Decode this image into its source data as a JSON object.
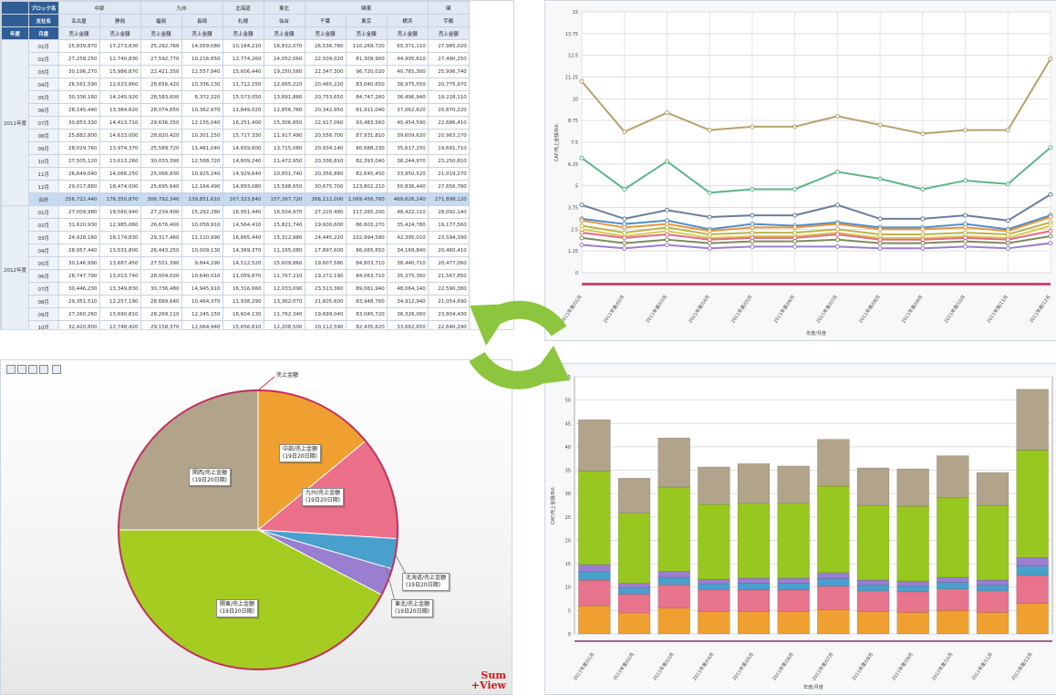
{
  "table": {
    "header_row1": [
      "ブロック名",
      "中部",
      "",
      "九州",
      "",
      "北海道",
      "東北",
      "関東",
      "",
      "",
      "",
      "関"
    ],
    "header_row2": [
      "支社名",
      "名古屋",
      "静岡",
      "福岡",
      "長崎",
      "札幌",
      "仙台",
      "千葉",
      "東京",
      "横浜",
      "宇都"
    ],
    "header_row3": [
      "年度",
      "月度",
      "売上金額"
    ],
    "years": [
      "2011年度",
      "2012年度"
    ],
    "months": [
      "01月",
      "02月",
      "03月",
      "04月",
      "05月",
      "06月",
      "07月",
      "08月",
      "09月",
      "10月",
      "11月",
      "12月"
    ],
    "total_label": "合計",
    "rows_2011": [
      [
        "25,839,870",
        "17,273,830",
        "25,292,760",
        "14,059,080",
        "10,164,210",
        "16,832,070",
        "26,536,780",
        "110,269,720",
        "65,371,110",
        "27,985,020"
      ],
      [
        "27,258,250",
        "12,740,830",
        "27,592,770",
        "10,216,650",
        "12,774,260",
        "14,052,060",
        "22,509,020",
        "81,309,900",
        "44,995,610",
        "27,490,250"
      ],
      [
        "30,196,270",
        "15,986,870",
        "22,421,350",
        "12,557,940",
        "15,606,440",
        "19,250,560",
        "22,347,300",
        "96,720,020",
        "40,765,300",
        "25,996,740"
      ],
      [
        "26,561,590",
        "12,633,860",
        "28,656,420",
        "10,336,130",
        "11,712,250",
        "12,665,220",
        "20,465,220",
        "83,040,650",
        "38,975,550",
        "20,775,970"
      ],
      [
        "30,336,160",
        "14,245,920",
        "28,583,600",
        "8,372,220",
        "15,573,050",
        "13,891,880",
        "20,753,650",
        "84,747,260",
        "36,496,940",
        "19,228,110"
      ],
      [
        "28,145,440",
        "13,384,620",
        "28,074,850",
        "10,362,970",
        "11,849,020",
        "12,856,760",
        "20,342,950",
        "81,911,040",
        "37,062,620",
        "20,670,220"
      ],
      [
        "30,853,330",
        "14,413,710",
        "29,636,350",
        "12,155,040",
        "16,251,400",
        "15,306,850",
        "22,917,060",
        "93,483,560",
        "45,454,590",
        "22,686,410"
      ],
      [
        "25,882,800",
        "14,633,000",
        "28,820,420",
        "10,301,150",
        "15,717,330",
        "11,917,490",
        "20,556,700",
        "87,931,810",
        "39,609,620",
        "20,963,170"
      ],
      [
        "28,029,760",
        "13,974,370",
        "25,589,720",
        "11,461,040",
        "14,659,600",
        "13,715,080",
        "20,934,140",
        "80,688,230",
        "35,617,250",
        "19,691,710"
      ],
      [
        "27,505,120",
        "13,613,260",
        "30,033,390",
        "12,568,720",
        "14,609,240",
        "11,472,950",
        "20,336,810",
        "82,393,040",
        "38,244,970",
        "23,250,810"
      ],
      [
        "26,649,040",
        "14,066,250",
        "25,066,830",
        "10,925,240",
        "14,929,640",
        "10,831,740",
        "20,356,880",
        "82,645,450",
        "33,950,520",
        "21,019,270"
      ],
      [
        "29,017,880",
        "18,474,000",
        "25,695,640",
        "12,164,490",
        "14,893,080",
        "15,598,650",
        "30,675,700",
        "123,802,210",
        "50,836,440",
        "27,656,780"
      ]
    ],
    "total_2011": [
      "256,722,440",
      "176,350,870",
      "306,792,340",
      "139,851,610",
      "167,323,840",
      "157,267,720",
      "266,112,000",
      "1,069,456,760",
      "469,626,240",
      "271,898,120"
    ],
    "rows_2012": [
      [
        "27,009,980",
        "19,560,940",
        "27,234,400",
        "15,292,280",
        "16,951,440",
        "16,504,970",
        "27,220,480",
        "117,265,200",
        "48,422,110",
        "28,092,140"
      ],
      [
        "31,620,930",
        "12,985,060",
        "26,676,400",
        "10,058,910",
        "14,564,410",
        "15,821,740",
        "19,600,600",
        "86,603,270",
        "35,424,780",
        "19,177,560"
      ],
      [
        "24,928,160",
        "18,174,830",
        "29,317,460",
        "11,110,990",
        "16,865,440",
        "15,312,980",
        "24,445,220",
        "102,994,580",
        "42,395,010",
        "23,594,390"
      ],
      [
        "28,957,440",
        "13,531,800",
        "26,443,250",
        "10,009,130",
        "14,369,370",
        "11,165,080",
        "17,897,600",
        "86,065,650",
        "34,169,840",
        "20,460,410"
      ],
      [
        "30,146,990",
        "13,687,450",
        "27,551,390",
        "9,844,290",
        "14,512,520",
        "15,609,860",
        "19,607,580",
        "84,803,710",
        "38,440,710",
        "20,477,060"
      ],
      [
        "28,747,790",
        "13,013,740",
        "28,004,020",
        "10,640,010",
        "11,059,870",
        "11,767,210",
        "19,272,190",
        "84,063,710",
        "35,375,360",
        "21,567,850"
      ],
      [
        "30,446,230",
        "13,349,830",
        "30,736,480",
        "14,945,910",
        "16,316,660",
        "12,033,090",
        "23,513,360",
        "89,061,940",
        "48,064,140",
        "22,590,380"
      ],
      [
        "29,351,510",
        "12,257,190",
        "28,689,640",
        "10,464,370",
        "11,938,290",
        "13,362,070",
        "21,605,600",
        "83,948,760",
        "34,912,940",
        "21,054,690"
      ],
      [
        "27,260,260",
        "13,690,810",
        "28,269,110",
        "12,245,150",
        "16,604,130",
        "11,762,340",
        "19,699,040",
        "83,045,720",
        "36,326,060",
        "23,804,430"
      ],
      [
        "32,420,800",
        "12,748,420",
        "29,158,370",
        "12,064,940",
        "15,656,610",
        "12,208,500",
        "20,112,590",
        "82,435,620",
        "33,662,650",
        "22,640,290"
      ]
    ]
  },
  "line_chart": {
    "y_ticks": [
      "15",
      "13.75",
      "12.5",
      "11.25",
      "10",
      "8.75",
      "7.5",
      "6.25",
      "5",
      "3.75",
      "2.5",
      "1.25",
      "0"
    ],
    "y_axis_label": "CAF/売上金額/Bill.",
    "x_axis_label": "年度/月度",
    "categories": [
      "2011年度/01月",
      "2011年度/02月",
      "2011年度/03月",
      "2011年度/04月",
      "2011年度/05月",
      "2011年度/06月",
      "2011年度/07月",
      "2011年度/08月",
      "2011年度/09月",
      "2011年度/10月",
      "2011年度/11月",
      "2011年度/12月"
    ]
  },
  "bar_chart": {
    "y_ticks": [
      "55",
      "50",
      "45",
      "40",
      "35",
      "30",
      "25",
      "20",
      "15",
      "10",
      "5",
      "0"
    ],
    "y_axis_label": "CAF/売上金額/Bill.",
    "x_axis_label": "年度/月度",
    "categories": [
      "2011年度/01月",
      "2011年度/02月",
      "2011年度/03月",
      "2011年度/04月",
      "2011年度/05月",
      "2011年度/06月",
      "2011年度/07月",
      "2011年度/08月",
      "2011年度/09月",
      "2011年度/10月",
      "2011年度/11月",
      "2011年度/12月"
    ]
  },
  "chart_data": [
    {
      "type": "line",
      "x": [
        "2011年度/01月",
        "2011年度/02月",
        "2011年度/03月",
        "2011年度/04月",
        "2011年度/05月",
        "2011年度/06月",
        "2011年度/07月",
        "2011年度/08月",
        "2011年度/09月",
        "2011年度/10月",
        "2011年度/11月",
        "2011年度/12月"
      ],
      "ylim": [
        0,
        15
      ],
      "series": [
        {
          "color": "#b5a26a",
          "values": [
            11.0,
            8.1,
            9.2,
            8.2,
            8.4,
            8.4,
            9.0,
            8.5,
            8.0,
            8.2,
            8.2,
            12.3
          ]
        },
        {
          "color": "#5fb58a",
          "values": [
            6.6,
            4.8,
            6.4,
            4.6,
            4.8,
            4.8,
            5.8,
            5.4,
            4.8,
            5.3,
            5.1,
            7.2
          ]
        },
        {
          "color": "#6a7d9a",
          "values": [
            3.9,
            3.1,
            3.6,
            3.2,
            3.3,
            3.3,
            3.9,
            3.1,
            3.1,
            3.3,
            3.0,
            4.5
          ]
        },
        {
          "color": "#4f8fc8",
          "values": [
            3.1,
            2.8,
            3.0,
            2.5,
            2.8,
            2.7,
            2.9,
            2.6,
            2.6,
            2.8,
            2.5,
            3.3
          ]
        },
        {
          "color": "#e8943a",
          "values": [
            3.0,
            2.6,
            2.8,
            2.4,
            2.6,
            2.6,
            2.8,
            2.5,
            2.5,
            2.6,
            2.4,
            3.2
          ]
        },
        {
          "color": "#b9b44a",
          "values": [
            2.7,
            2.3,
            2.6,
            2.2,
            2.3,
            2.3,
            2.5,
            2.2,
            2.2,
            2.3,
            2.2,
            2.9
          ]
        },
        {
          "color": "#d9c94f",
          "values": [
            2.5,
            2.1,
            2.4,
            2.0,
            2.1,
            2.1,
            2.3,
            2.0,
            2.0,
            2.1,
            2.0,
            2.7
          ]
        },
        {
          "color": "#e06a8a",
          "values": [
            2.3,
            2.0,
            2.2,
            1.9,
            2.0,
            2.0,
            2.2,
            1.9,
            1.9,
            2.0,
            1.9,
            2.4
          ]
        },
        {
          "color": "#7d8b5b",
          "values": [
            2.0,
            1.7,
            1.9,
            1.7,
            1.8,
            1.8,
            1.9,
            1.7,
            1.7,
            1.8,
            1.7,
            2.1
          ]
        },
        {
          "color": "#9a7fd1",
          "values": [
            1.6,
            1.4,
            1.6,
            1.4,
            1.5,
            1.5,
            1.5,
            1.4,
            1.4,
            1.5,
            1.4,
            1.7
          ]
        }
      ]
    },
    {
      "type": "bar",
      "x": [
        "2011年度/01月",
        "2011年度/02月",
        "2011年度/03月",
        "2011年度/04月",
        "2011年度/05月",
        "2011年度/06月",
        "2011年度/07月",
        "2011年度/08月",
        "2011年度/09月",
        "2011年度/10月",
        "2011年度/11月",
        "2011年度/12月"
      ],
      "ylim": [
        0,
        55
      ],
      "stacked": true,
      "series": [
        {
          "color": "#f0a030",
          "values": [
            6,
            4.5,
            5.5,
            4.8,
            4.8,
            4.8,
            5.2,
            4.8,
            4.6,
            5,
            4.6,
            6.5
          ]
        },
        {
          "color": "#e8738c",
          "values": [
            5.5,
            4,
            5,
            4.6,
            4.6,
            4.6,
            5,
            4.4,
            4.4,
            4.6,
            4.6,
            6
          ]
        },
        {
          "color": "#4aa0cc",
          "values": [
            1.8,
            1.3,
            1.6,
            1.3,
            1.4,
            1.4,
            1.6,
            1.3,
            1.3,
            1.4,
            1.3,
            2
          ]
        },
        {
          "color": "#9a7fd1",
          "values": [
            1.5,
            1,
            1.3,
            1,
            1.1,
            1.1,
            1.3,
            1,
            1,
            1.1,
            1,
            1.8
          ]
        },
        {
          "color": "#98c820",
          "values": [
            20,
            15,
            18,
            16,
            16,
            16,
            18.5,
            16,
            16,
            17,
            16,
            23
          ]
        },
        {
          "color": "#b1a48b",
          "values": [
            11,
            7.5,
            10.5,
            8,
            8.5,
            8,
            10,
            8,
            8,
            9,
            7,
            13
          ]
        }
      ]
    },
    {
      "type": "pie",
      "slices": [
        {
          "label": "中部/売上金額",
          "sub": "(19日20日期)",
          "value": 14,
          "color": "#f0a030"
        },
        {
          "label": "九州/売上金額",
          "sub": "(19日20日期)",
          "value": 12,
          "color": "#ec6f8a"
        },
        {
          "label": "北海道/売上金額",
          "sub": "(19日20日期)",
          "value": 3.5,
          "color": "#4aa0cc"
        },
        {
          "label": "東北/売上金額",
          "sub": "(19日20日期)",
          "value": 3.2,
          "color": "#9a7fd1"
        },
        {
          "label": "関東/売上金額",
          "sub": "(19日20日期)",
          "value": 42.3,
          "color": "#a4cc21"
        },
        {
          "label": "関西/売上金額",
          "sub": "(19日20日期)",
          "value": 25,
          "color": "#b1a48b"
        }
      ]
    }
  ],
  "pie_callout": "売上金額",
  "watermark": {
    "line1": "Sum",
    "line2": "+View"
  },
  "colors": {
    "refresh_arrows": "#8cc63f",
    "table_header_dark": "#2f5d96"
  }
}
